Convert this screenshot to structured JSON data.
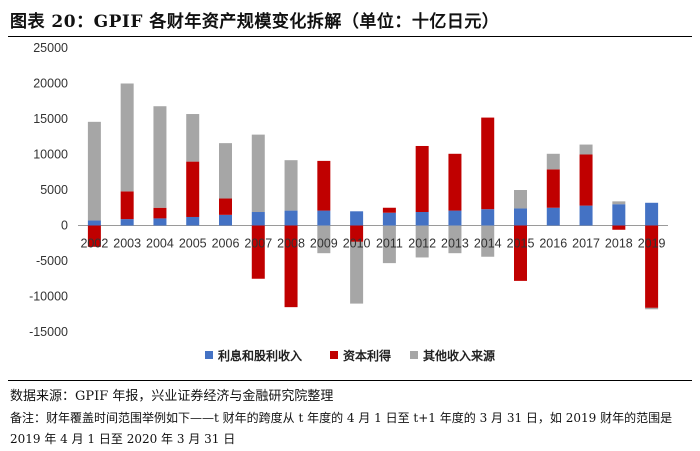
{
  "title": "图表 20：GPIF 各财年资产规模变化拆解（单位：十亿日元）",
  "source": "数据来源：GPIF 年报，兴业证券经济与金融研究院整理",
  "note": "备注：财年覆盖时间范围举例如下——t 财年的跨度从 t 年度的 4 月 1 日至 t+1 年度的 3 月 31 日，如 2019 财年的范围是 2019 年 4 月 1 日至 2020 年 3 月 31 日",
  "chart_data": {
    "type": "bar",
    "stacked": true,
    "categories": [
      "2002",
      "2003",
      "2004",
      "2005",
      "2006",
      "2007",
      "2008",
      "2009",
      "2010",
      "2011",
      "2012",
      "2013",
      "2014",
      "2015",
      "2016",
      "2017",
      "2018",
      "2019"
    ],
    "yticks": [
      -15000,
      -10000,
      -5000,
      0,
      5000,
      10000,
      15000,
      20000,
      25000
    ],
    "ylim": [
      -15000,
      25000
    ],
    "series": [
      {
        "name": "利息和股利收入",
        "color": "#4472C4",
        "values": [
          700,
          900,
          1000,
          1200,
          1500,
          1900,
          2100,
          2100,
          2000,
          1800,
          1900,
          2100,
          2300,
          2400,
          2500,
          2800,
          3000,
          3200
        ]
      },
      {
        "name": "资本利得",
        "color": "#C00000",
        "values": [
          -3000,
          3900,
          1500,
          7800,
          2300,
          -7500,
          -11500,
          7000,
          -2300,
          700,
          9300,
          8000,
          12900,
          -7800,
          5400,
          7200,
          -600,
          -11600
        ]
      },
      {
        "name": "其他收入来源",
        "color": "#A6A6A6",
        "values": [
          13900,
          15200,
          14300,
          6700,
          7800,
          10900,
          7100,
          -3900,
          -8700,
          -5300,
          -4500,
          -3900,
          -4400,
          2600,
          2200,
          1400,
          400,
          -200
        ]
      }
    ],
    "legend": "bottom",
    "grid": false
  }
}
